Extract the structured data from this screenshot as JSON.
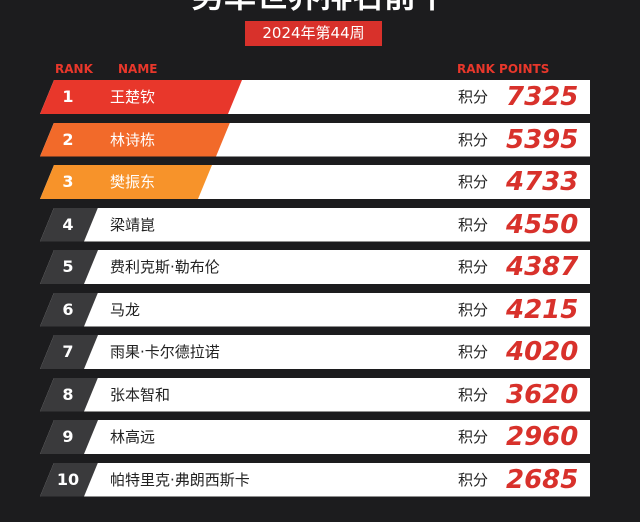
{
  "header": {
    "title": "男单世界排名前十",
    "subtitle": "2024年第44周"
  },
  "table": {
    "columns": [
      "RANK",
      "NAME",
      "RANK POINTS"
    ],
    "rows": [
      {
        "rank": 1,
        "name": "王楚钦",
        "label": "积分",
        "points": 7325
      },
      {
        "rank": 2,
        "name": "林诗栋",
        "label": "积分",
        "points": 5395
      },
      {
        "rank": 3,
        "name": "樊振东",
        "label": "积分",
        "points": 4733
      },
      {
        "rank": 4,
        "name": "梁靖崑",
        "label": "积分",
        "points": 4550
      },
      {
        "rank": 5,
        "name": "费利克斯·勒布伦",
        "label": "积分",
        "points": 4387
      },
      {
        "rank": 6,
        "name": "马龙",
        "label": "积分",
        "points": 4215
      },
      {
        "rank": 7,
        "name": "雨果·卡尔德拉诺",
        "label": "积分",
        "points": 4020
      },
      {
        "rank": 8,
        "name": "张本智和",
        "label": "积分",
        "points": 3620
      },
      {
        "rank": 9,
        "name": "林高远",
        "label": "积分",
        "points": 2960
      },
      {
        "rank": 10,
        "name": "帕特里克·弗朗西斯卡",
        "label": "积分",
        "points": 2685
      }
    ]
  }
}
